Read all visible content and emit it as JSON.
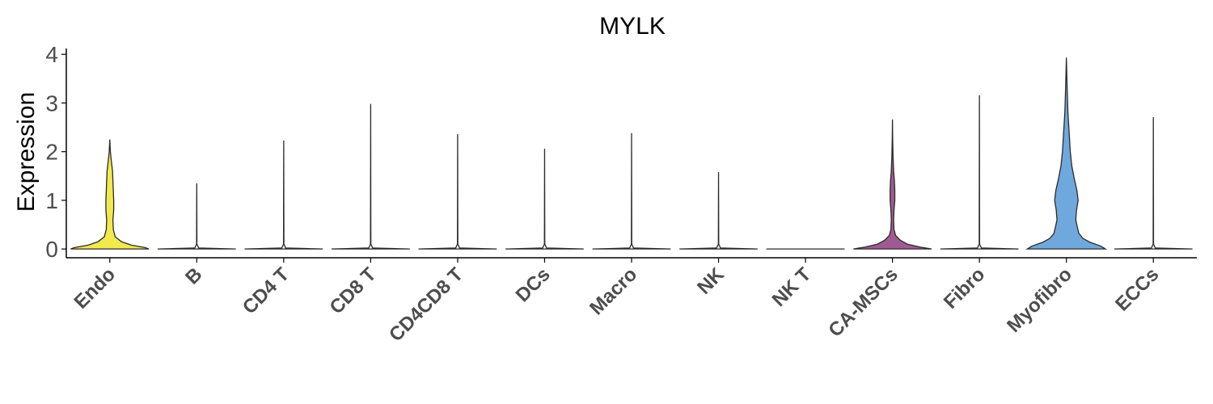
{
  "chart_data": {
    "type": "violin",
    "title": "MYLK",
    "xlabel": "",
    "ylabel": "Expression",
    "ylim": [
      -0.18,
      4.12
    ],
    "yticks": [
      0,
      1,
      2,
      3,
      4
    ],
    "grid": false,
    "legend": "none",
    "categories": [
      "Endo",
      "B",
      "CD4 T",
      "CD8 T",
      "CD4CD8 T",
      "DCs",
      "Macro",
      "NK",
      "NK T",
      "CA-MSCs",
      "Fibro",
      "Myofibro",
      "ECCs"
    ],
    "series": [
      {
        "category": "Endo",
        "color": "#f2e94e",
        "max": 2.25,
        "profile": [
          [
            0,
            1.0
          ],
          [
            0.03,
            0.9
          ],
          [
            0.08,
            0.55
          ],
          [
            0.15,
            0.3
          ],
          [
            0.25,
            0.14
          ],
          [
            0.4,
            0.09
          ],
          [
            0.6,
            0.08
          ],
          [
            0.8,
            0.1
          ],
          [
            1.0,
            0.1
          ],
          [
            1.2,
            0.09
          ],
          [
            1.4,
            0.08
          ],
          [
            1.6,
            0.07
          ],
          [
            1.8,
            0.04
          ],
          [
            2.0,
            0.015
          ],
          [
            2.25,
            0.0
          ]
        ]
      },
      {
        "category": "B",
        "color": "#f7f7f7",
        "max": 1.35,
        "profile": [
          [
            0,
            1.0
          ],
          [
            0.02,
            0.05
          ],
          [
            0.1,
            0.005
          ],
          [
            1.35,
            0.0
          ]
        ]
      },
      {
        "category": "CD4 T",
        "color": "#f7f7f7",
        "max": 2.23,
        "profile": [
          [
            0,
            1.0
          ],
          [
            0.02,
            0.05
          ],
          [
            0.1,
            0.005
          ],
          [
            2.23,
            0.0
          ]
        ]
      },
      {
        "category": "CD8 T",
        "color": "#f7f7f7",
        "max": 2.98,
        "profile": [
          [
            0,
            1.0
          ],
          [
            0.02,
            0.05
          ],
          [
            0.1,
            0.005
          ],
          [
            2.98,
            0.0
          ]
        ]
      },
      {
        "category": "CD4CD8 T",
        "color": "#f7f7f7",
        "max": 2.36,
        "profile": [
          [
            0,
            1.0
          ],
          [
            0.02,
            0.05
          ],
          [
            0.1,
            0.005
          ],
          [
            2.36,
            0.0
          ]
        ]
      },
      {
        "category": "DCs",
        "color": "#f7f7f7",
        "max": 2.06,
        "profile": [
          [
            0,
            1.0
          ],
          [
            0.02,
            0.05
          ],
          [
            0.1,
            0.005
          ],
          [
            2.06,
            0.0
          ]
        ]
      },
      {
        "category": "Macro",
        "color": "#f7f7f7",
        "max": 2.38,
        "profile": [
          [
            0,
            1.0
          ],
          [
            0.02,
            0.05
          ],
          [
            0.1,
            0.005
          ],
          [
            2.38,
            0.0
          ]
        ]
      },
      {
        "category": "NK",
        "color": "#f7f7f7",
        "max": 1.58,
        "profile": [
          [
            0,
            1.0
          ],
          [
            0.02,
            0.05
          ],
          [
            0.1,
            0.005
          ],
          [
            1.58,
            0.0
          ]
        ]
      },
      {
        "category": "NK T",
        "color": "#f7f7f7",
        "max": 0.0,
        "profile": [
          [
            0,
            1.0
          ]
        ]
      },
      {
        "category": "CA-MSCs",
        "color": "#a05a93",
        "max": 2.66,
        "profile": [
          [
            0,
            1.0
          ],
          [
            0.04,
            0.7
          ],
          [
            0.1,
            0.38
          ],
          [
            0.18,
            0.2
          ],
          [
            0.28,
            0.08
          ],
          [
            0.4,
            0.04
          ],
          [
            0.6,
            0.03
          ],
          [
            0.8,
            0.04
          ],
          [
            1.0,
            0.06
          ],
          [
            1.2,
            0.06
          ],
          [
            1.4,
            0.05
          ],
          [
            1.6,
            0.03
          ],
          [
            1.9,
            0.015
          ],
          [
            2.3,
            0.005
          ],
          [
            2.66,
            0.0
          ]
        ]
      },
      {
        "category": "Fibro",
        "color": "#f7f7f7",
        "max": 3.16,
        "profile": [
          [
            0,
            1.0
          ],
          [
            0.02,
            0.05
          ],
          [
            0.1,
            0.005
          ],
          [
            3.16,
            0.0
          ]
        ]
      },
      {
        "category": "Myofibro",
        "color": "#6fa8dc",
        "max": 3.93,
        "profile": [
          [
            0,
            1.0
          ],
          [
            0.06,
            0.88
          ],
          [
            0.14,
            0.6
          ],
          [
            0.22,
            0.42
          ],
          [
            0.32,
            0.32
          ],
          [
            0.45,
            0.28
          ],
          [
            0.6,
            0.24
          ],
          [
            0.8,
            0.26
          ],
          [
            1.0,
            0.3
          ],
          [
            1.2,
            0.27
          ],
          [
            1.45,
            0.2
          ],
          [
            1.7,
            0.14
          ],
          [
            2.0,
            0.1
          ],
          [
            2.4,
            0.07
          ],
          [
            2.8,
            0.04
          ],
          [
            3.3,
            0.02
          ],
          [
            3.93,
            0.0
          ]
        ]
      },
      {
        "category": "ECCs",
        "color": "#f7f7f7",
        "max": 2.71,
        "profile": [
          [
            0,
            1.0
          ],
          [
            0.02,
            0.05
          ],
          [
            0.1,
            0.005
          ],
          [
            2.71,
            0.0
          ]
        ]
      }
    ]
  }
}
